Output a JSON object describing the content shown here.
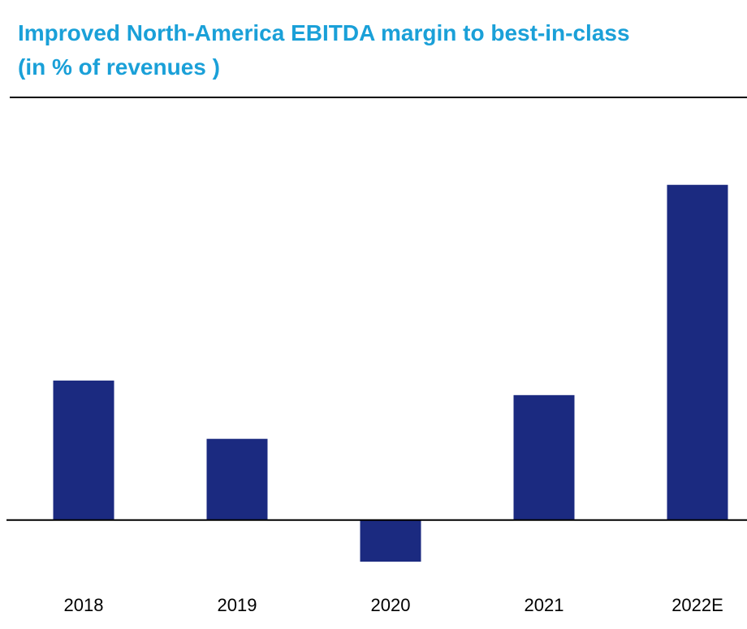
{
  "header": {
    "title_line1": "Improved North-America EBITDA margin to best-in-class",
    "title_line2": "(in % of revenues )"
  },
  "colors": {
    "title": "#1aa0d8",
    "bar": "#1b2a80",
    "axis": "#000000"
  },
  "chart_data": {
    "type": "bar",
    "categories": [
      "2018",
      "2019",
      "2020",
      "2021",
      "2022E"
    ],
    "values": [
      6.7,
      3.9,
      -2.0,
      6.0,
      16.1
    ],
    "ylim": [
      -2.7,
      20.3
    ],
    "grid": false,
    "legend": "none",
    "xlabel": "",
    "ylabel": ""
  }
}
